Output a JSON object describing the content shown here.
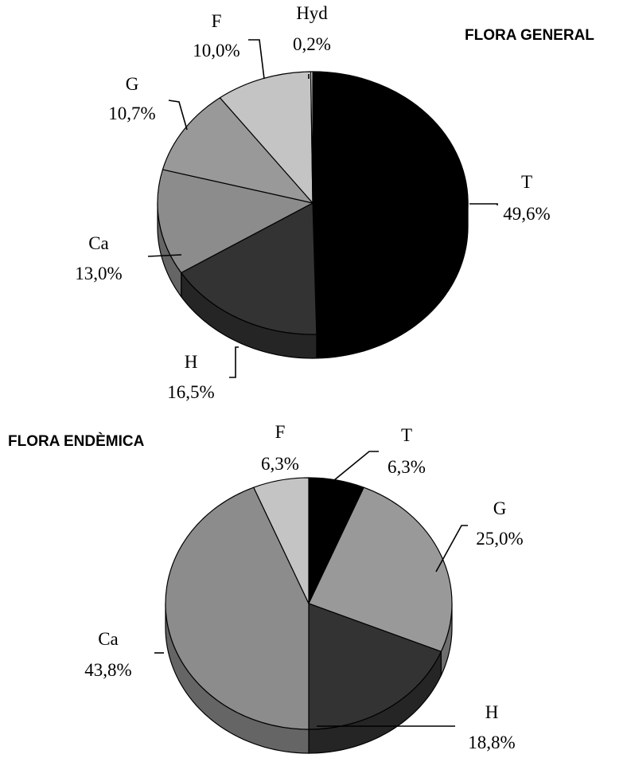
{
  "chart_data": [
    {
      "type": "pie",
      "title": "FLORA GENERAL",
      "slices": [
        {
          "label": "T",
          "value": 49.6,
          "value_text": "49,6%",
          "color": "#000000"
        },
        {
          "label": "H",
          "value": 16.5,
          "value_text": "16,5%",
          "color": "#333333"
        },
        {
          "label": "Ca",
          "value": 13.0,
          "value_text": "13,0%",
          "color": "#8c8c8c"
        },
        {
          "label": "G",
          "value": 10.7,
          "value_text": "10,7%",
          "color": "#999999"
        },
        {
          "label": "F",
          "value": 10.0,
          "value_text": "10,0%",
          "color": "#c4c4c4"
        },
        {
          "label": "Hyd",
          "value": 0.2,
          "value_text": "0,2%",
          "color": "#f2f2f2"
        }
      ]
    },
    {
      "type": "pie",
      "title": "FLORA ENDÈMICA",
      "slices": [
        {
          "label": "T",
          "value": 6.3,
          "value_text": "6,3%",
          "color": "#000000"
        },
        {
          "label": "G",
          "value": 25.0,
          "value_text": "25,0%",
          "color": "#999999"
        },
        {
          "label": "H",
          "value": 18.8,
          "value_text": "18,8%",
          "color": "#333333"
        },
        {
          "label": "Ca",
          "value": 43.8,
          "value_text": "43,8%",
          "color": "#8c8c8c"
        },
        {
          "label": "F",
          "value": 6.3,
          "value_text": "6,3%",
          "color": "#c4c4c4"
        }
      ]
    }
  ]
}
